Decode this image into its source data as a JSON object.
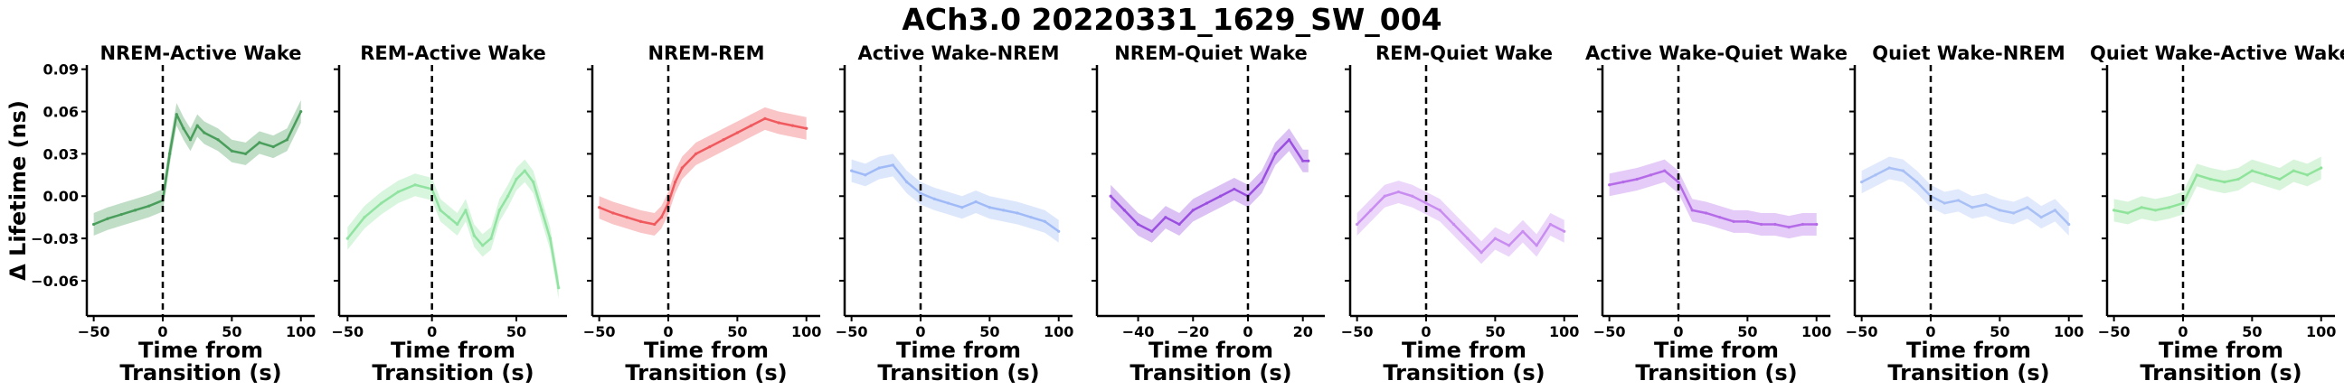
{
  "figure": {
    "suptitle": "ACh3.0 20220331_1629_SW_004"
  },
  "chart_data": {
    "type": "line",
    "title": "ACh3.0 20220331_1629_SW_004",
    "ylabel": "Δ Lifetime (ns)",
    "ylim": [
      -0.085,
      0.093
    ],
    "yticks": [
      -0.06,
      -0.03,
      0.0,
      0.03,
      0.06,
      0.09
    ],
    "yticklabels": [
      "−0.06",
      "−0.03",
      "0.00",
      "0.03",
      "0.06",
      "0.09"
    ],
    "grid": false,
    "panels": [
      {
        "title": "NREM-Active Wake",
        "color": "#4a9e5c",
        "xlabel": "Time from\nTransition (s)",
        "xlim": [
          -55,
          110
        ],
        "xticks": [
          -50,
          0,
          50,
          100
        ],
        "xticklabels": [
          "−50",
          "0",
          "50",
          "100"
        ],
        "x": [
          -50,
          -40,
          -30,
          -20,
          -10,
          0,
          5,
          10,
          15,
          20,
          25,
          30,
          40,
          50,
          60,
          70,
          80,
          90,
          100
        ],
        "values": [
          -0.02,
          -0.016,
          -0.013,
          -0.01,
          -0.007,
          -0.003,
          0.03,
          0.058,
          0.048,
          0.04,
          0.05,
          0.045,
          0.04,
          0.032,
          0.03,
          0.038,
          0.035,
          0.04,
          0.06
        ]
      },
      {
        "title": "REM-Active Wake",
        "color": "#90e3a0",
        "xlabel": "Time from\nTransition (s)",
        "xlim": [
          -55,
          80
        ],
        "xticks": [
          -50,
          0,
          50
        ],
        "xticklabels": [
          "−50",
          "0",
          "50"
        ],
        "x": [
          -50,
          -40,
          -30,
          -20,
          -10,
          0,
          5,
          10,
          15,
          20,
          25,
          30,
          35,
          40,
          45,
          50,
          55,
          60,
          65,
          70,
          75
        ],
        "values": [
          -0.03,
          -0.015,
          -0.005,
          0.003,
          0.008,
          0.005,
          -0.01,
          -0.015,
          -0.02,
          -0.01,
          -0.028,
          -0.035,
          -0.03,
          -0.01,
          0.0,
          0.012,
          0.018,
          0.01,
          -0.01,
          -0.03,
          -0.065
        ]
      },
      {
        "title": "NREM-REM",
        "color": "#f0595e",
        "xlabel": "Time from\nTransition (s)",
        "xlim": [
          -55,
          110
        ],
        "xticks": [
          -50,
          0,
          50,
          100
        ],
        "xticklabels": [
          "−50",
          "0",
          "50",
          "100"
        ],
        "x": [
          -50,
          -40,
          -30,
          -20,
          -10,
          -5,
          0,
          5,
          10,
          20,
          30,
          40,
          50,
          60,
          70,
          80,
          90,
          100
        ],
        "values": [
          -0.008,
          -0.012,
          -0.015,
          -0.018,
          -0.02,
          -0.015,
          -0.005,
          0.01,
          0.02,
          0.03,
          0.035,
          0.04,
          0.045,
          0.05,
          0.055,
          0.052,
          0.05,
          0.048
        ]
      },
      {
        "title": "Active Wake-NREM",
        "color": "#9fbaf6",
        "xlabel": "Time from\nTransition (s)",
        "xlim": [
          -55,
          110
        ],
        "xticks": [
          -50,
          0,
          50,
          100
        ],
        "xticklabels": [
          "−50",
          "0",
          "50",
          "100"
        ],
        "x": [
          -50,
          -40,
          -30,
          -20,
          -10,
          0,
          10,
          20,
          30,
          40,
          50,
          60,
          70,
          80,
          90,
          100
        ],
        "values": [
          0.018,
          0.015,
          0.02,
          0.022,
          0.01,
          0.002,
          -0.002,
          -0.005,
          -0.008,
          -0.004,
          -0.008,
          -0.01,
          -0.012,
          -0.015,
          -0.018,
          -0.025
        ]
      },
      {
        "title": "NREM-Quiet Wake",
        "color": "#9b4fe0",
        "xlabel": "Time from\nTransition (s)",
        "xlim": [
          -55,
          28
        ],
        "xticks": [
          -40,
          -20,
          0,
          20
        ],
        "xticklabels": [
          "−40",
          "−20",
          "0",
          "20"
        ],
        "x": [
          -50,
          -45,
          -40,
          -35,
          -30,
          -25,
          -20,
          -15,
          -10,
          -5,
          0,
          5,
          10,
          15,
          20,
          22
        ],
        "values": [
          0.0,
          -0.01,
          -0.02,
          -0.025,
          -0.015,
          -0.02,
          -0.01,
          -0.005,
          0.0,
          0.005,
          0.0,
          0.01,
          0.03,
          0.04,
          0.025,
          0.025
        ]
      },
      {
        "title": "REM-Quiet Wake",
        "color": "#c98cf0",
        "xlabel": "Time from\nTransition (s)",
        "xlim": [
          -55,
          110
        ],
        "xticks": [
          -50,
          0,
          50,
          100
        ],
        "xticklabels": [
          "−50",
          "0",
          "50",
          "100"
        ],
        "x": [
          -50,
          -40,
          -30,
          -20,
          -10,
          0,
          10,
          20,
          30,
          40,
          50,
          60,
          70,
          80,
          90,
          100
        ],
        "values": [
          -0.02,
          -0.01,
          0.0,
          0.003,
          0.0,
          -0.005,
          -0.01,
          -0.02,
          -0.03,
          -0.04,
          -0.03,
          -0.035,
          -0.025,
          -0.035,
          -0.02,
          -0.025
        ]
      },
      {
        "title": "Active Wake-Quiet Wake",
        "color": "#b56be8",
        "xlabel": "Time from\nTransition (s)",
        "xlim": [
          -55,
          110
        ],
        "xticks": [
          -50,
          0,
          50,
          100
        ],
        "xticklabels": [
          "−50",
          "0",
          "50",
          "100"
        ],
        "x": [
          -50,
          -40,
          -30,
          -20,
          -10,
          0,
          10,
          20,
          30,
          40,
          50,
          60,
          70,
          80,
          90,
          100
        ],
        "values": [
          0.008,
          0.01,
          0.012,
          0.015,
          0.018,
          0.01,
          -0.01,
          -0.012,
          -0.015,
          -0.018,
          -0.018,
          -0.02,
          -0.02,
          -0.022,
          -0.02,
          -0.02
        ]
      },
      {
        "title": "Quiet Wake-NREM",
        "color": "#a8c0f5",
        "xlabel": "Time from\nTransition (s)",
        "xlim": [
          -55,
          110
        ],
        "xticks": [
          -50,
          0,
          50,
          100
        ],
        "xticklabels": [
          "−50",
          "0",
          "50",
          "100"
        ],
        "x": [
          -50,
          -40,
          -30,
          -20,
          -10,
          0,
          10,
          20,
          30,
          40,
          50,
          60,
          70,
          80,
          90,
          100
        ],
        "values": [
          0.01,
          0.015,
          0.02,
          0.018,
          0.01,
          0.0,
          -0.005,
          -0.003,
          -0.008,
          -0.006,
          -0.01,
          -0.012,
          -0.008,
          -0.015,
          -0.01,
          -0.02
        ]
      },
      {
        "title": "Quiet Wake-Active Wake",
        "color": "#8fe39a",
        "xlabel": "Time from\nTransition (s)",
        "xlim": [
          -55,
          110
        ],
        "xticks": [
          -50,
          0,
          50,
          100
        ],
        "xticklabels": [
          "−50",
          "0",
          "50",
          "100"
        ],
        "x": [
          -50,
          -40,
          -30,
          -20,
          -10,
          0,
          10,
          20,
          30,
          40,
          50,
          60,
          70,
          80,
          90,
          100
        ],
        "values": [
          -0.01,
          -0.012,
          -0.008,
          -0.01,
          -0.008,
          -0.005,
          0.015,
          0.012,
          0.01,
          0.012,
          0.018,
          0.015,
          0.012,
          0.018,
          0.015,
          0.02
        ]
      }
    ]
  }
}
